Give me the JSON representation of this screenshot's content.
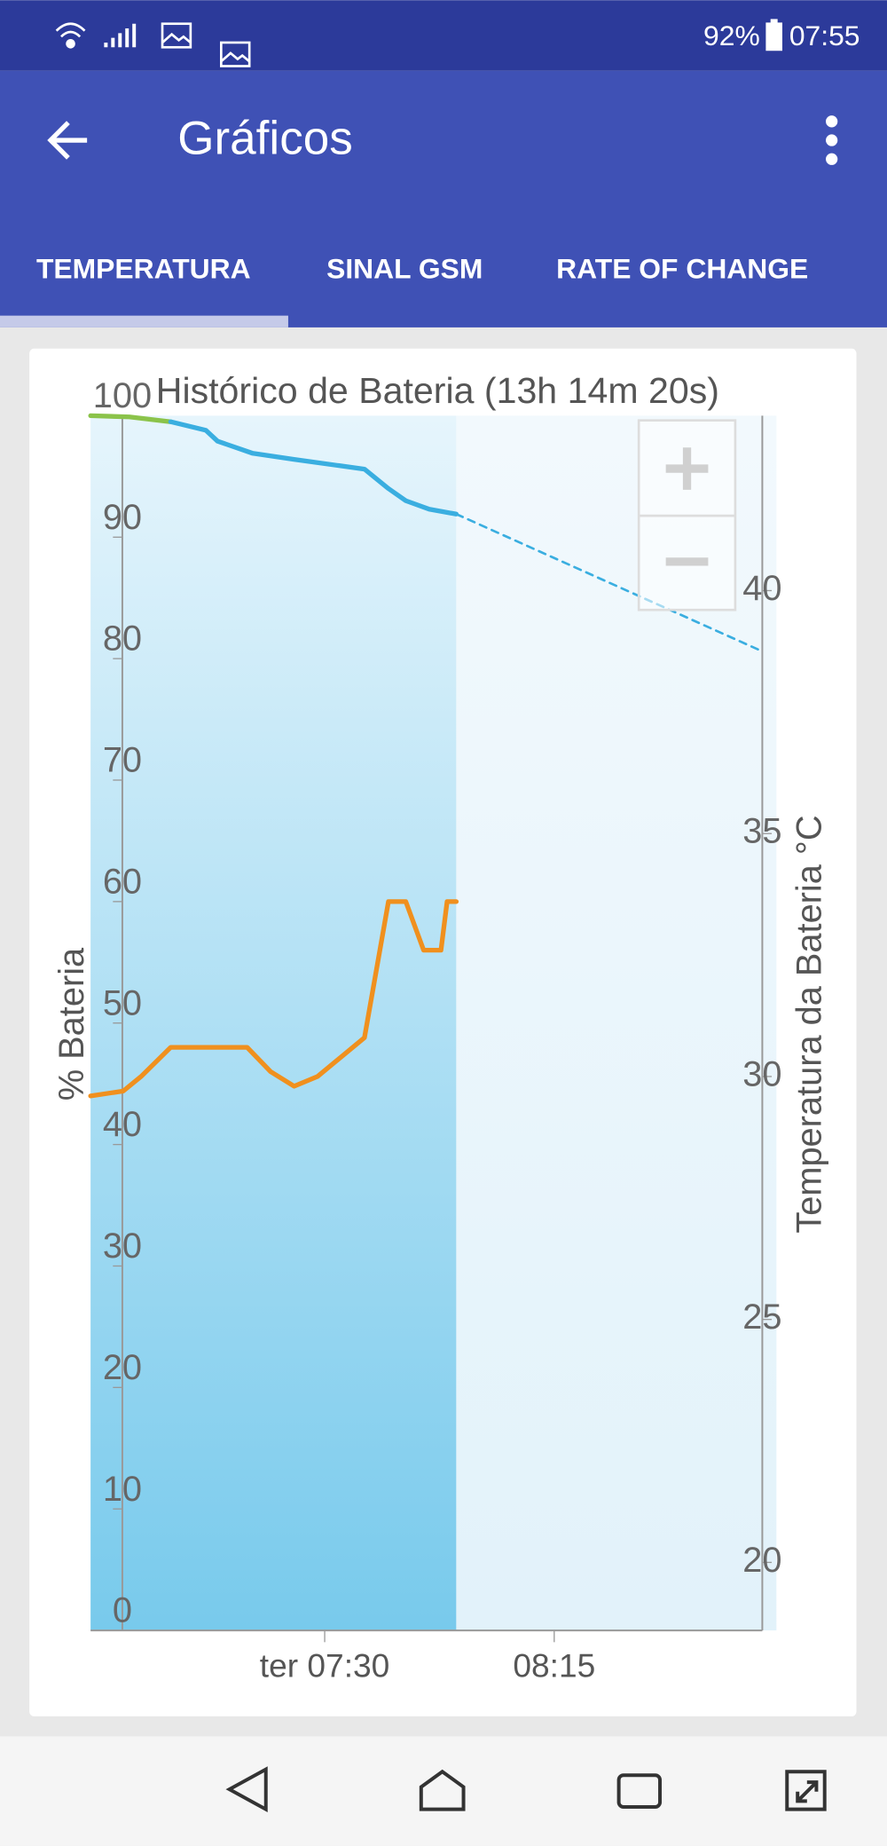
{
  "status_bar": {
    "battery": "92%",
    "time": "07:55"
  },
  "app_bar": {
    "title": "Gráficos"
  },
  "tabs": [
    "TEMPERATURA",
    "SINAL GSM",
    "RATE OF CHANGE"
  ],
  "chart_data": {
    "type": "line",
    "title": "Histórico de Bateria (13h 14m 20s)",
    "ylabel": "% Bateria",
    "y2label": "Temperatura da Bateria °C",
    "xlim": [
      404.1,
      535.8
    ],
    "xticks": [
      {
        "value": 450,
        "label": "ter 07:30"
      },
      {
        "value": 495,
        "label": "08:15"
      }
    ],
    "ylim": [
      0,
      100
    ],
    "yticks": [
      0,
      10,
      20,
      30,
      40,
      50,
      60,
      70,
      80,
      90,
      100
    ],
    "y2lim": [
      18.6,
      43.6
    ],
    "y2ticks": [
      20,
      25,
      30,
      35,
      40
    ],
    "series": [
      {
        "color": "#8bc34a",
        "x": [
          404.1,
          411.7,
          419.8
        ],
        "values": [
          100,
          99.9,
          99.5
        ]
      },
      {
        "color": "#3aaee0",
        "x": [
          419.8,
          426.7,
          429.0,
          435.9,
          444.0,
          457.8,
          462.5,
          465.9,
          470.5,
          475.8
        ],
        "values": [
          99.5,
          98.8,
          97.9,
          96.9,
          96.4,
          95.6,
          94.0,
          93.0,
          92.3,
          91.9
        ]
      },
      {
        "color": "#3aaee0",
        "dashed": true,
        "x": [
          475.8,
          535.8
        ],
        "values": [
          91.9,
          80.6
        ]
      },
      {
        "color": "#f0901e",
        "axis": "y2",
        "x": [
          404.1,
          410.5,
          414.0,
          419.8,
          434.8,
          439.4,
          444.0,
          448.6,
          457.8,
          462.5,
          465.9,
          469.4,
          472.8,
          474.0,
          475.8
        ],
        "values": [
          29.6,
          29.7,
          30.0,
          30.6,
          30.6,
          30.1,
          29.8,
          30.0,
          30.8,
          33.6,
          33.6,
          32.6,
          32.6,
          33.6,
          33.6
        ]
      }
    ]
  }
}
